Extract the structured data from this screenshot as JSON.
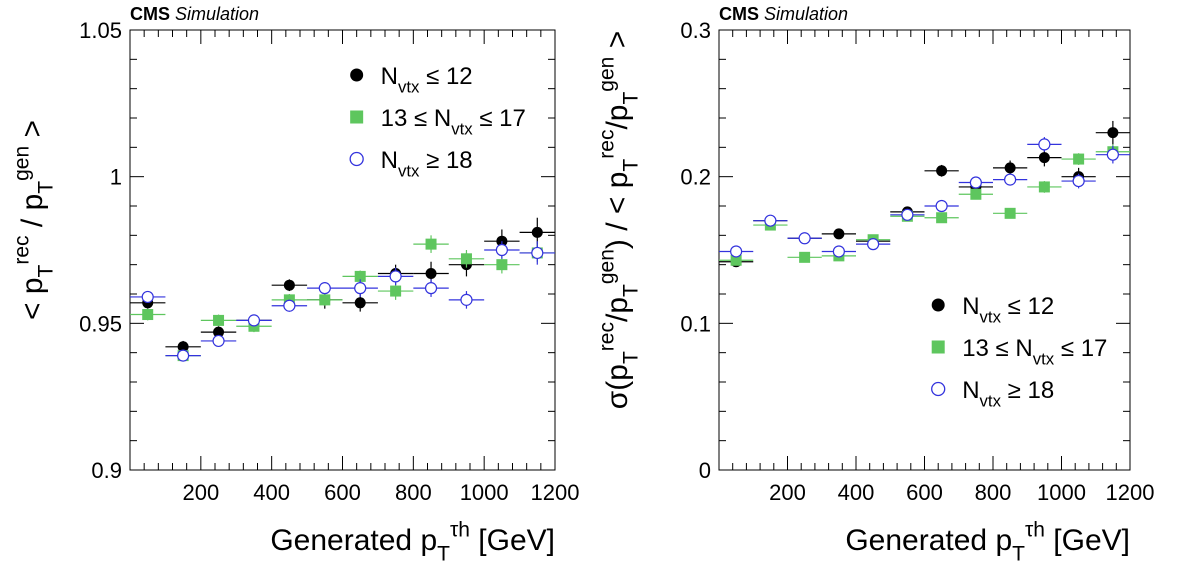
{
  "chart_data": [
    {
      "type": "scatter",
      "header": {
        "experiment": "CMS",
        "tag": "Simulation"
      },
      "ylabel": "< p_T^rec / p_T^gen >",
      "xlabel": "Generated p_T^τh [GeV]",
      "xlim": [
        0,
        1200
      ],
      "ylim": [
        0.9,
        1.05
      ],
      "xticks": [
        "200",
        "400",
        "600",
        "800",
        "1000",
        "1200"
      ],
      "yticks": [
        "0.9",
        "0.95",
        "1",
        "1.05"
      ],
      "legend_position": "top-right",
      "x": [
        50,
        150,
        250,
        350,
        450,
        550,
        650,
        750,
        850,
        950,
        1050,
        1150
      ],
      "x_half_width": 50,
      "series": [
        {
          "name": "N_vtx ≤ 12",
          "marker": "filled-circle",
          "color": "#000000",
          "values": [
            0.957,
            0.942,
            0.947,
            0.951,
            0.963,
            0.958,
            0.957,
            0.967,
            0.967,
            0.97,
            0.978,
            0.981
          ],
          "errors": [
            0.002,
            0.002,
            0.002,
            0.002,
            0.002,
            0.003,
            0.003,
            0.003,
            0.004,
            0.004,
            0.004,
            0.005
          ]
        },
        {
          "name": "13 ≤ N_vtx ≤ 17",
          "marker": "filled-square",
          "color": "#5ec65e",
          "values": [
            0.953,
            0.939,
            0.951,
            0.949,
            0.958,
            0.958,
            0.966,
            0.961,
            0.977,
            0.972,
            0.97,
            0.974
          ],
          "errors": [
            0.002,
            0.002,
            0.002,
            0.002,
            0.002,
            0.002,
            0.002,
            0.003,
            0.003,
            0.003,
            0.003,
            0.003
          ]
        },
        {
          "name": "N_vtx ≥ 18",
          "marker": "open-circle",
          "color": "#3333dd",
          "values": [
            0.959,
            0.939,
            0.944,
            0.951,
            0.956,
            0.962,
            0.962,
            0.966,
            0.962,
            0.958,
            0.975,
            0.974
          ],
          "errors": [
            0.002,
            0.002,
            0.002,
            0.002,
            0.002,
            0.002,
            0.003,
            0.003,
            0.003,
            0.003,
            0.003,
            0.004
          ]
        }
      ]
    },
    {
      "type": "scatter",
      "header": {
        "experiment": "CMS",
        "tag": "Simulation"
      },
      "ylabel": "σ(p_T^rec/p_T^gen) / < p_T^rec/p_T^gen >",
      "xlabel": "Generated p_T^τh [GeV]",
      "xlim": [
        0,
        1200
      ],
      "ylim": [
        0,
        0.3
      ],
      "xticks": [
        "200",
        "400",
        "600",
        "800",
        "1000",
        "1200"
      ],
      "yticks": [
        "0",
        "0.1",
        "0.2",
        "0.3"
      ],
      "legend_position": "bottom-right",
      "x": [
        50,
        150,
        250,
        350,
        450,
        550,
        650,
        750,
        850,
        950,
        1050,
        1150
      ],
      "x_half_width": 50,
      "series": [
        {
          "name": "N_vtx ≤ 12",
          "marker": "filled-circle",
          "color": "#000000",
          "values": [
            0.142,
            0.17,
            0.158,
            0.161,
            0.156,
            0.176,
            0.204,
            0.193,
            0.206,
            0.213,
            0.2,
            0.23
          ],
          "errors": [
            0.002,
            0.002,
            0.002,
            0.002,
            0.002,
            0.003,
            0.004,
            0.004,
            0.005,
            0.006,
            0.006,
            0.008
          ]
        },
        {
          "name": "13 ≤ N_vtx ≤ 17",
          "marker": "filled-square",
          "color": "#5ec65e",
          "values": [
            0.143,
            0.167,
            0.145,
            0.146,
            0.157,
            0.173,
            0.172,
            0.188,
            0.175,
            0.193,
            0.212,
            0.217
          ],
          "errors": [
            0.002,
            0.002,
            0.002,
            0.002,
            0.002,
            0.002,
            0.003,
            0.003,
            0.003,
            0.004,
            0.004,
            0.005
          ]
        },
        {
          "name": "N_vtx ≥ 18",
          "marker": "open-circle",
          "color": "#3333dd",
          "values": [
            0.149,
            0.17,
            0.158,
            0.149,
            0.154,
            0.174,
            0.18,
            0.196,
            0.198,
            0.222,
            0.197,
            0.215
          ],
          "errors": [
            0.002,
            0.002,
            0.002,
            0.002,
            0.002,
            0.003,
            0.003,
            0.004,
            0.004,
            0.005,
            0.005,
            0.006
          ]
        }
      ]
    }
  ]
}
